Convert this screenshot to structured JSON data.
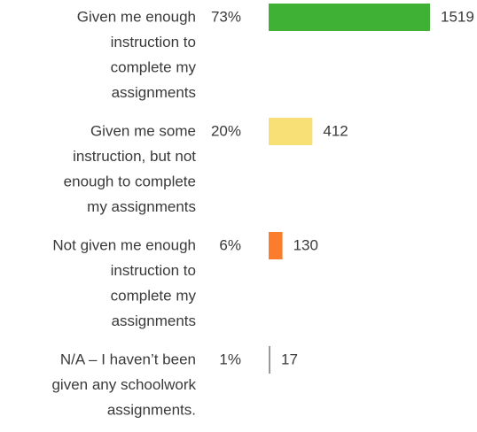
{
  "chart_data": {
    "type": "bar",
    "categories": [
      [
        "Given me enough",
        "instruction to",
        "complete my",
        "assignments"
      ],
      [
        "Given me some",
        "instruction, but not",
        "enough to complete",
        "my assignments"
      ],
      [
        "Not given me enough",
        "instruction to",
        "complete my",
        "assignments"
      ],
      [
        "N/A – I haven’t been",
        "given any schoolwork",
        "assignments."
      ]
    ],
    "values": [
      1519,
      412,
      130,
      17
    ],
    "percent": [
      73,
      20,
      6,
      1
    ],
    "percent_labels": [
      "73%",
      "20%",
      "6%",
      "1%"
    ],
    "colors": [
      "#3fb134",
      "#f9e076",
      "#fb7d2c",
      "#9a9a9a"
    ]
  }
}
